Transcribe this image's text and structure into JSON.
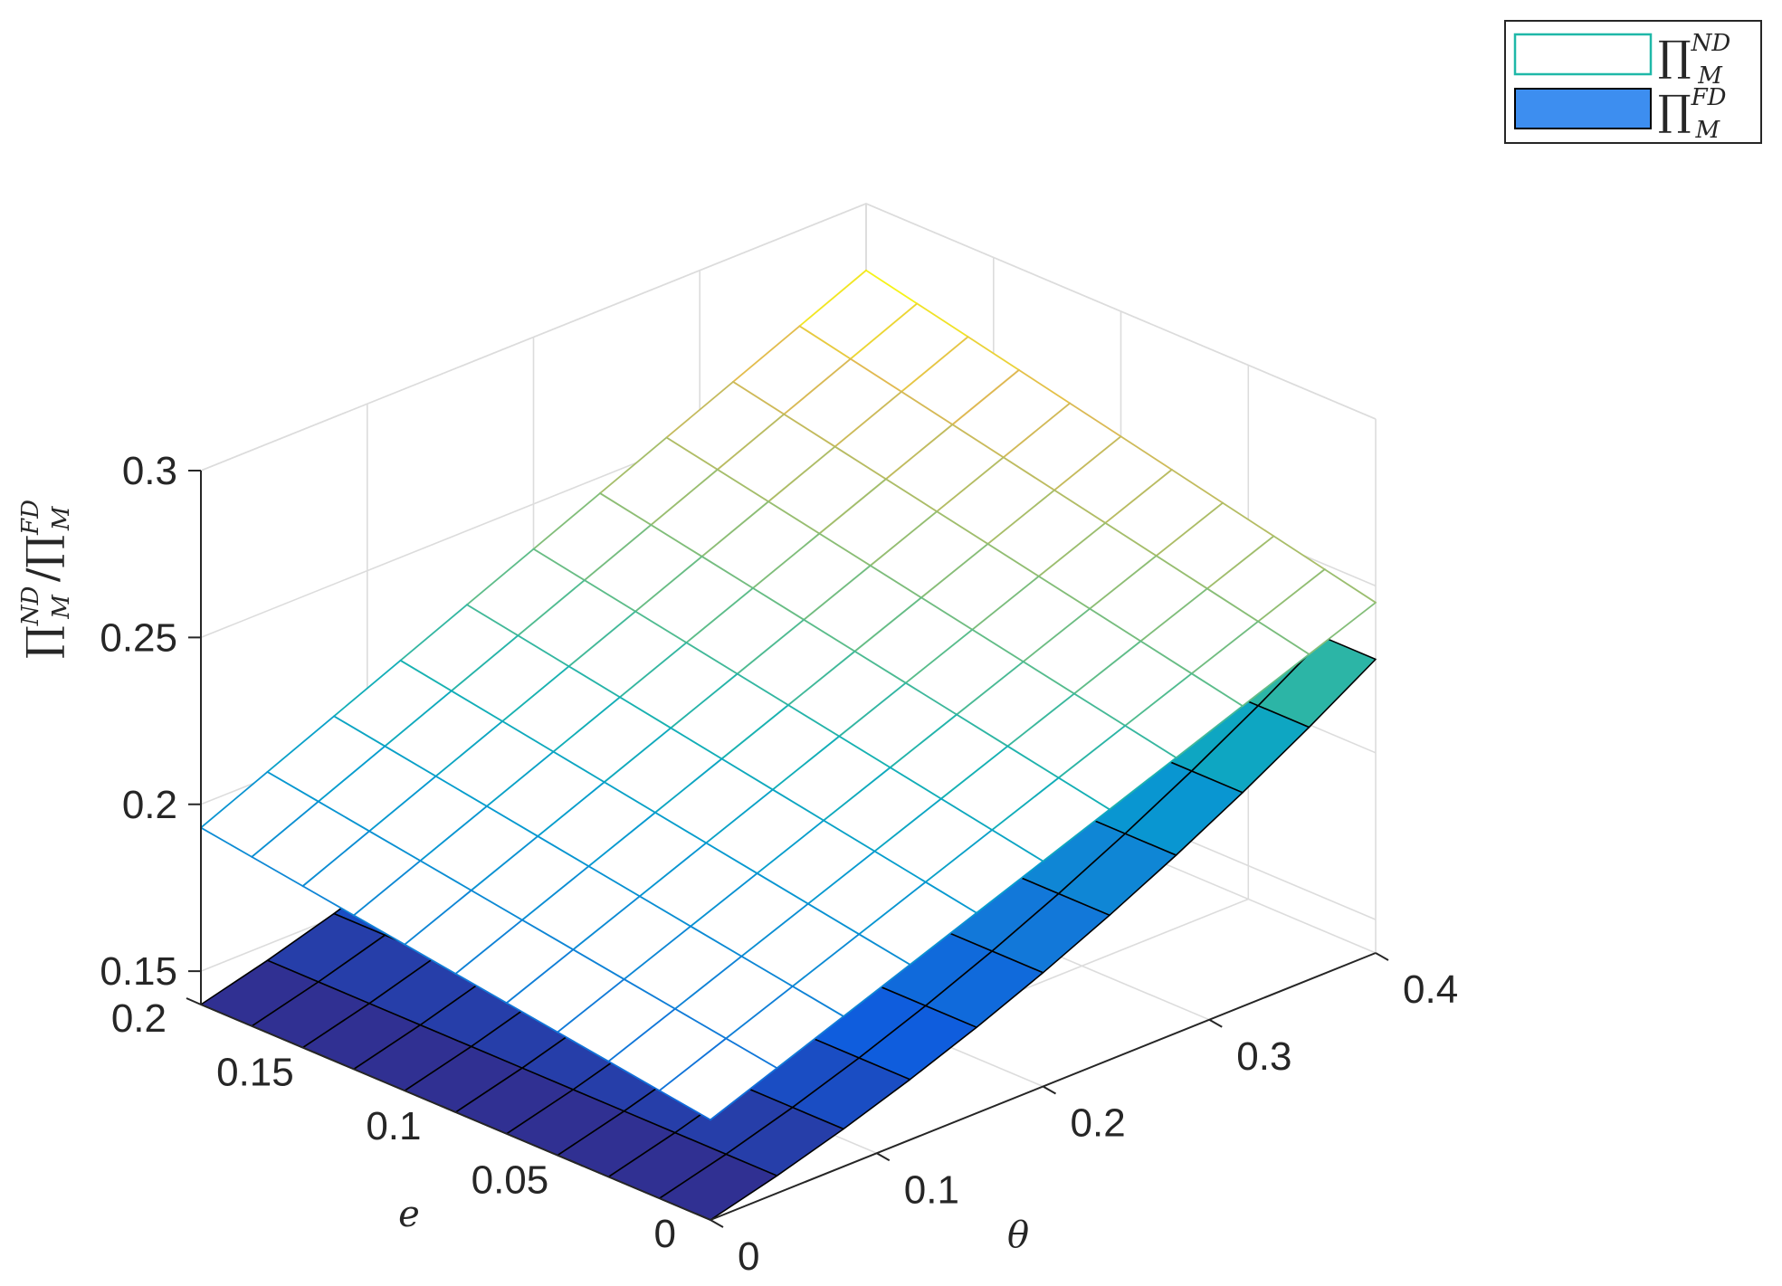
{
  "chart_data": {
    "type": "surface3d",
    "xlabel": "θ",
    "ylabel": "e",
    "zlabel_main": "∏",
    "zlabel_sup1": "ND",
    "zlabel_sub1": "M",
    "zlabel_sep": "/∏",
    "zlabel_sup2": "FD",
    "zlabel_sub2": "M",
    "x_ticks": [
      "0",
      "0.1",
      "0.2",
      "0.3",
      "0.4"
    ],
    "x_tick_values": [
      0,
      0.1,
      0.2,
      0.3,
      0.4
    ],
    "y_ticks": [
      "0",
      "0.05",
      "0.1",
      "0.15",
      "0.2"
    ],
    "y_tick_values": [
      0,
      0.05,
      0.1,
      0.15,
      0.2
    ],
    "z_ticks": [
      "0.15",
      "0.2",
      "0.25",
      "0.3"
    ],
    "z_tick_values": [
      0.15,
      0.2,
      0.25,
      0.3
    ],
    "xlim": [
      0,
      0.4
    ],
    "ylim": [
      0,
      0.2
    ],
    "zlim": [
      0.14,
      0.3
    ],
    "grid": true,
    "legend_position": "top-right",
    "theta": [
      0,
      0.04,
      0.08,
      0.12,
      0.16,
      0.2,
      0.24,
      0.28,
      0.32,
      0.36,
      0.4
    ],
    "e": [
      0,
      0.02,
      0.04,
      0.06,
      0.08,
      0.1,
      0.12,
      0.14,
      0.16,
      0.18,
      0.2
    ],
    "series": [
      {
        "name_main": "∏",
        "name_sup": "ND",
        "name_sub": "M",
        "style": "mesh",
        "legend_color": "#1fb8a8",
        "corner_values": {
          "theta0_e0": 0.17,
          "theta_max_e0": 0.245,
          "theta0_e_max": 0.193,
          "theta_max_e_max": 0.28
        }
      },
      {
        "name_main": "∏",
        "name_sup": "FD",
        "name_sub": "M",
        "style": "filled",
        "legend_color": "#3d8ef0",
        "corner_values": {
          "theta0_e0": 0.14,
          "theta_max_e0": 0.228,
          "theta0_e_max": 0.14,
          "theta_max_e_max": 0.228
        }
      }
    ]
  }
}
